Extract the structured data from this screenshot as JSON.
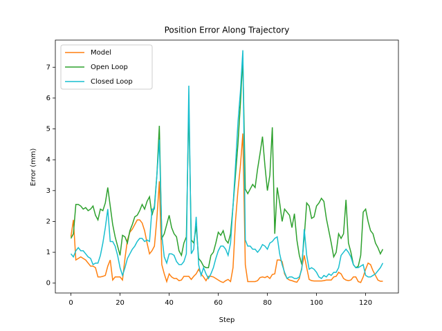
{
  "chart_data": {
    "type": "line",
    "title": "Position Error Along Trajectory",
    "xlabel": "Step",
    "ylabel": "Error (mm)",
    "x": [
      0,
      1,
      2,
      3,
      4,
      5,
      6,
      7,
      8,
      9,
      10,
      11,
      12,
      13,
      14,
      15,
      16,
      17,
      18,
      19,
      20,
      21,
      22,
      23,
      24,
      25,
      26,
      27,
      28,
      29,
      30,
      31,
      32,
      33,
      34,
      35,
      36,
      37,
      38,
      39,
      40,
      41,
      42,
      43,
      44,
      45,
      46,
      47,
      48,
      49,
      50,
      51,
      52,
      53,
      54,
      55,
      56,
      57,
      58,
      59,
      60,
      61,
      62,
      63,
      64,
      65,
      66,
      67,
      68,
      69,
      70,
      71,
      72,
      73,
      74,
      75,
      76,
      77,
      78,
      79,
      80,
      81,
      82,
      83,
      84,
      85,
      86,
      87,
      88,
      89,
      90,
      91,
      92,
      93,
      94,
      95,
      96,
      97,
      98,
      99,
      100,
      101,
      102,
      103,
      104,
      105,
      106,
      107,
      108,
      109,
      110,
      111,
      112,
      113,
      114,
      115,
      116,
      117,
      118,
      119,
      120,
      121,
      122,
      123,
      124,
      125,
      126,
      127
    ],
    "series": [
      {
        "name": "Model",
        "color": "#ff7f0e",
        "values": [
          1.5,
          2.05,
          0.75,
          0.8,
          0.85,
          0.8,
          0.75,
          0.65,
          0.55,
          0.55,
          0.5,
          0.2,
          0.2,
          0.22,
          0.25,
          0.55,
          0.75,
          0.1,
          0.2,
          0.2,
          0.2,
          0.1,
          0.8,
          1.4,
          1.65,
          1.75,
          1.9,
          2.05,
          2.05,
          1.95,
          1.7,
          1.3,
          0.95,
          1.05,
          1.2,
          2.1,
          3.3,
          0.6,
          0.3,
          0.05,
          0.3,
          0.2,
          0.15,
          0.15,
          0.08,
          0.1,
          0.22,
          0.22,
          0.22,
          0.12,
          0.22,
          0.3,
          0.45,
          0.3,
          0.2,
          0.08,
          0.22,
          0.22,
          0.2,
          0.15,
          0.1,
          0.05,
          0.02,
          0.08,
          0.12,
          0.05,
          0.5,
          2.0,
          3.0,
          3.8,
          4.85,
          0.6,
          0.05,
          0.05,
          0.05,
          0.05,
          0.08,
          0.18,
          0.2,
          0.18,
          0.22,
          0.15,
          0.28,
          0.3,
          0.75,
          0.75,
          0.7,
          0.3,
          0.15,
          0.1,
          0.08,
          0.05,
          0.03,
          0.15,
          0.5,
          0.9,
          0.5,
          0.12,
          0.08,
          0.07,
          0.07,
          0.07,
          0.07,
          0.08,
          0.1,
          0.1,
          0.1,
          0.2,
          0.22,
          0.35,
          0.3,
          0.15,
          0.1,
          0.08,
          0.1,
          0.2,
          0.2,
          0.05,
          0.02,
          0.2,
          0.45,
          0.65,
          0.6,
          0.4,
          0.25,
          0.1,
          0.06,
          0.06
        ]
      },
      {
        "name": "Open Loop",
        "color": "#2ca02c",
        "values": [
          1.45,
          1.6,
          2.55,
          2.55,
          2.5,
          2.4,
          2.45,
          2.35,
          2.4,
          2.5,
          2.2,
          2.05,
          2.4,
          2.35,
          2.6,
          3.1,
          2.5,
          1.9,
          1.5,
          1.2,
          0.9,
          1.55,
          1.5,
          1.3,
          1.7,
          1.9,
          2.15,
          2.2,
          2.35,
          2.55,
          2.4,
          2.65,
          2.8,
          2.2,
          2.5,
          3.5,
          5.1,
          1.45,
          1.6,
          1.9,
          2.2,
          1.8,
          1.6,
          1.5,
          1.05,
          0.9,
          1.3,
          1.5,
          5.75,
          1.4,
          1.3,
          1.85,
          0.8,
          0.7,
          0.55,
          0.5,
          0.5,
          0.9,
          1.0,
          1.3,
          1.65,
          1.55,
          1.7,
          1.4,
          1.3,
          1.6,
          2.5,
          3.5,
          4.5,
          5.8,
          7.3,
          3.05,
          2.9,
          3.05,
          3.2,
          3.1,
          3.7,
          4.2,
          4.75,
          3.8,
          3.0,
          3.5,
          5.05,
          1.6,
          3.1,
          2.6,
          2.0,
          2.4,
          2.3,
          2.2,
          1.8,
          2.25,
          1.4,
          0.9,
          0.6,
          1.5,
          2.6,
          2.5,
          2.1,
          2.15,
          2.5,
          2.6,
          2.75,
          2.65,
          2.1,
          1.7,
          1.3,
          0.85,
          1.0,
          1.6,
          1.45,
          1.6,
          2.7,
          1.3,
          1.0,
          0.6,
          0.5,
          0.55,
          0.9,
          2.3,
          2.4,
          2.0,
          1.7,
          1.6,
          1.3,
          1.15,
          0.95,
          1.1
        ]
      },
      {
        "name": "Closed Loop",
        "color": "#17becf",
        "values": [
          0.95,
          0.85,
          1.05,
          1.15,
          1.05,
          1.05,
          0.95,
          0.85,
          0.8,
          0.6,
          0.65,
          0.65,
          0.9,
          1.3,
          1.8,
          2.4,
          1.35,
          1.35,
          1.2,
          0.9,
          0.5,
          0.25,
          0.5,
          0.8,
          0.95,
          1.1,
          1.2,
          1.35,
          1.45,
          1.45,
          1.35,
          1.4,
          1.35,
          2.4,
          2.4,
          3.5,
          4.65,
          1.55,
          0.85,
          0.65,
          0.95,
          0.95,
          0.9,
          0.7,
          0.6,
          0.6,
          0.7,
          0.95,
          6.4,
          0.95,
          1.1,
          2.15,
          0.6,
          0.25,
          0.5,
          0.3,
          0.15,
          0.3,
          0.5,
          0.8,
          1.05,
          1.2,
          1.2,
          1.1,
          0.9,
          1.3,
          2.5,
          3.8,
          5.2,
          6.2,
          7.55,
          1.4,
          1.2,
          1.2,
          1.1,
          1.1,
          1.0,
          1.1,
          1.25,
          1.2,
          1.1,
          1.3,
          1.35,
          1.45,
          1.5,
          0.95,
          0.6,
          0.35,
          0.15,
          0.2,
          0.2,
          0.15,
          0.15,
          0.2,
          0.45,
          1.75,
          0.9,
          0.45,
          0.5,
          0.45,
          0.35,
          0.2,
          0.15,
          0.25,
          0.2,
          0.3,
          0.25,
          0.35,
          0.35,
          0.5,
          0.9,
          1.0,
          1.1,
          1.0,
          0.85,
          0.6,
          0.5,
          0.5,
          0.55,
          0.6,
          0.25,
          0.2,
          0.2,
          0.25,
          0.3,
          0.4,
          0.5,
          0.65
        ]
      }
    ],
    "xlim": [
      -6.35,
      133.35
    ],
    "xticks": [
      0,
      20,
      40,
      60,
      80,
      100,
      120
    ],
    "ylim": [
      -0.32,
      7.88
    ],
    "yticks": [
      0,
      1,
      2,
      3,
      4,
      5,
      6,
      7
    ],
    "legend": "upper left"
  }
}
